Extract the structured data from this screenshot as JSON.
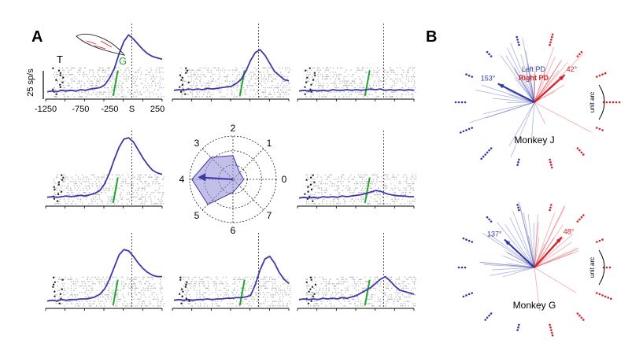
{
  "panels": {
    "a_label": "A",
    "b_label": "B"
  },
  "colors": {
    "psth": "#3f37a8",
    "go": "#22a52c",
    "target": "#111111",
    "raster": "#b4b4b4",
    "left_pd": "#2f3aa3",
    "right_pd": "#d4222a",
    "polar_fill": "#8f8cd6"
  },
  "psth_labels": {
    "scale_bar": "25 sp/s",
    "target_marker": "T",
    "go_marker": "G",
    "x_ticks": [
      "-1250",
      "-750",
      "-250",
      "S",
      "250"
    ]
  },
  "psth_panels": [
    {
      "direction": 3,
      "curve": [
        4,
        5,
        4,
        6,
        5,
        6,
        5,
        7,
        6,
        8,
        9,
        10,
        14,
        24,
        38,
        60,
        78,
        88,
        82,
        74,
        66,
        60,
        56,
        54,
        52
      ]
    },
    {
      "direction": 2,
      "curve": [
        6,
        7,
        6,
        8,
        7,
        8,
        7,
        9,
        8,
        9,
        10,
        11,
        12,
        16,
        22,
        34,
        50,
        62,
        66,
        58,
        46,
        34,
        28,
        22,
        20
      ]
    },
    {
      "direction": 1,
      "curve": [
        5,
        6,
        5,
        6,
        5,
        6,
        5,
        7,
        6,
        6,
        7,
        6,
        7,
        6,
        7,
        8,
        7,
        8,
        6,
        7,
        6,
        7,
        6,
        7,
        6
      ]
    },
    {
      "direction": 4,
      "curve": [
        6,
        7,
        6,
        7,
        8,
        7,
        8,
        9,
        8,
        10,
        12,
        16,
        26,
        42,
        62,
        80,
        92,
        94,
        88,
        76,
        64,
        54,
        46,
        42,
        40
      ]
    },
    {
      "direction": 0,
      "curve": [
        5,
        6,
        5,
        6,
        5,
        7,
        6,
        7,
        6,
        8,
        7,
        8,
        9,
        10,
        12,
        14,
        16,
        15,
        12,
        10,
        9,
        8,
        8,
        7,
        7
      ]
    },
    {
      "direction": 5,
      "curve": [
        4,
        5,
        4,
        6,
        5,
        6,
        6,
        7,
        7,
        8,
        10,
        14,
        22,
        36,
        54,
        72,
        80,
        78,
        70,
        60,
        52,
        46,
        42,
        40,
        40
      ]
    },
    {
      "direction": 6,
      "curve": [
        5,
        6,
        5,
        6,
        5,
        6,
        6,
        7,
        6,
        7,
        7,
        8,
        8,
        9,
        9,
        10,
        12,
        28,
        50,
        66,
        70,
        60,
        46,
        36,
        30
      ]
    },
    {
      "direction": 7,
      "curve": [
        6,
        7,
        6,
        7,
        6,
        8,
        7,
        8,
        7,
        9,
        8,
        10,
        12,
        16,
        20,
        24,
        30,
        36,
        40,
        34,
        26,
        20,
        18,
        16,
        14
      ]
    }
  ],
  "polar": {
    "labels": [
      "0",
      "1",
      "2",
      "3",
      "4",
      "5",
      "6",
      "7"
    ],
    "radii": [
      0.25,
      0.22,
      0.55,
      0.72,
      0.95,
      0.82,
      0.3,
      0.2
    ]
  },
  "chart_data": [
    {
      "type": "line",
      "title": "",
      "xlabel": "",
      "ylabel": "25 sp/s",
      "x_tick_labels": [
        "-1250",
        "-750",
        "-250",
        "S",
        "250"
      ],
      "xlim": [
        -1400,
        300
      ],
      "markers": [
        "T",
        "G",
        "S"
      ],
      "series_count": 8
    },
    {
      "type": "scatter",
      "subtype": "preferred-direction",
      "series": [
        {
          "name": "Left PD",
          "angle_deg": 153
        },
        {
          "name": "Right PD",
          "angle_deg": 42
        }
      ]
    },
    {
      "type": "scatter",
      "subtype": "preferred-direction",
      "series": [
        {
          "name": "Left PD",
          "angle_deg": 137
        },
        {
          "name": "Right PD",
          "angle_deg": 48
        }
      ]
    }
  ],
  "pd_plots": [
    {
      "monkey": "Monkey J",
      "left_label": "153°",
      "right_label": "42°",
      "left_angle": 153,
      "right_angle": 42,
      "legend_left": "Left PD",
      "legend_right": "Right PD",
      "unit_arc": "unit arc"
    },
    {
      "monkey": "Monkey G",
      "left_label": "137°",
      "right_label": "48°",
      "left_angle": 137,
      "right_angle": 48,
      "unit_arc": "unit arc"
    }
  ]
}
